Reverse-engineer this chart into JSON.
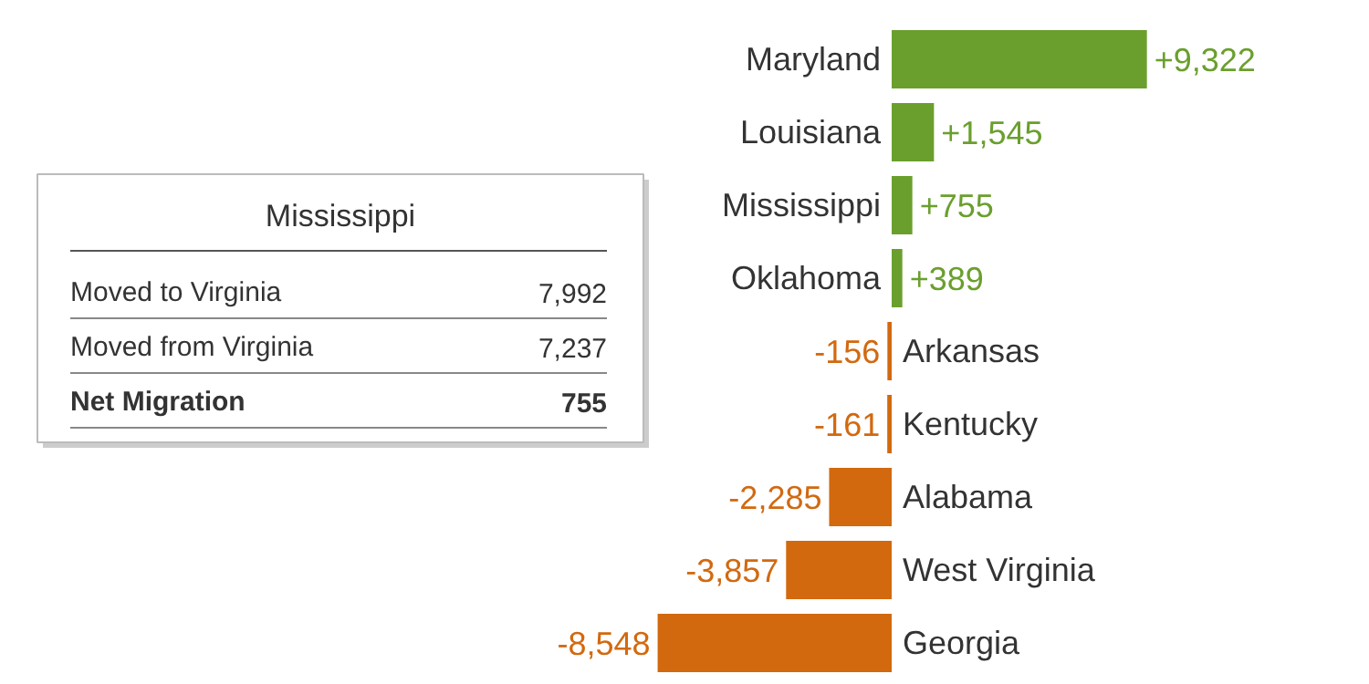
{
  "chart_data": {
    "type": "bar",
    "orientation": "horizontal",
    "categories": [
      "Maryland",
      "Louisiana",
      "Mississippi",
      "Oklahoma",
      "Arkansas",
      "Kentucky",
      "Alabama",
      "West Virginia",
      "Georgia"
    ],
    "values": [
      9322,
      1545,
      755,
      389,
      -156,
      -161,
      -2285,
      -3857,
      -8548
    ],
    "colors": [
      "#6a9f2d",
      "#6a9f2d",
      "#6a9f2d",
      "#6a9f2d",
      "#d2690f",
      "#d2690f",
      "#d2690f",
      "#d2690f",
      "#d2690f"
    ],
    "value_labels": [
      "+9,322",
      "+1,545",
      "+755",
      "+389",
      "-156",
      "-161",
      "-2,285",
      "-3,857",
      "-8,548"
    ],
    "annotations": [
      "Mississippi",
      "Moved to Virginia",
      "7,992",
      "Moved from Virginia",
      "7,237",
      "Net Migration",
      "755"
    ]
  }
}
